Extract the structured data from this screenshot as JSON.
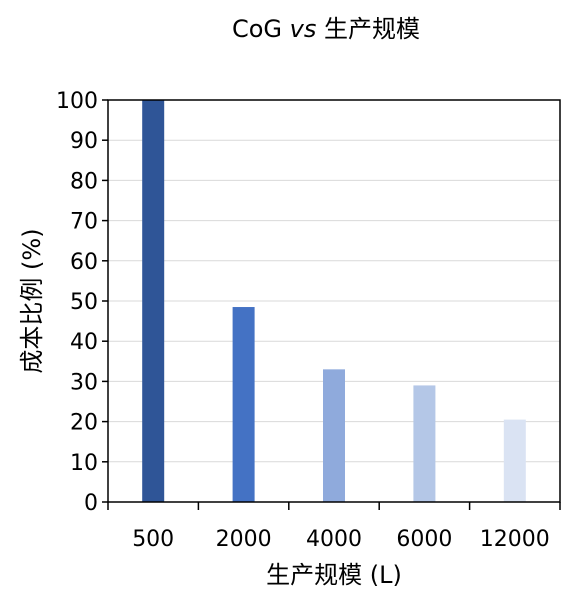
{
  "chart_data": {
    "type": "bar",
    "title_prefix": "CoG ",
    "title_italic": "vs",
    "title_suffix": " 生产规模",
    "xlabel": "生产规模 (L)",
    "ylabel": "成本比例 (%)",
    "categories": [
      "500",
      "2000",
      "4000",
      "6000",
      "12000"
    ],
    "values": [
      100,
      48.5,
      33,
      29,
      20.5
    ],
    "colors": [
      "#2f5597",
      "#4472c4",
      "#8faadc",
      "#b4c7e7",
      "#dae3f3"
    ],
    "ylim": [
      0,
      100
    ],
    "yticks": [
      "0",
      "10",
      "20",
      "30",
      "40",
      "50",
      "60",
      "70",
      "80",
      "90",
      "100"
    ],
    "grid": true,
    "legend": "none"
  }
}
